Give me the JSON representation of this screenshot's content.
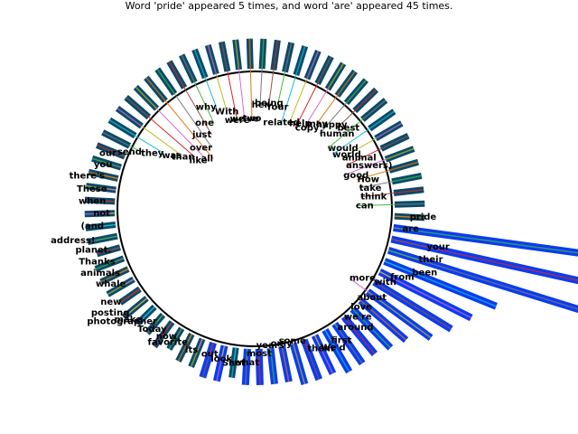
{
  "chart_data": {
    "type": "bar",
    "layout": "radial",
    "title": "Word 'pride' appeared 5 times, and word 'are' appeared 45 times.",
    "categories": [
      "pride",
      "are",
      "your",
      "their",
      "been",
      "from",
      "with",
      "more",
      "about",
      "love",
      "we're",
      "around",
      "first",
      "We'd",
      "them",
      "some",
      "only",
      "years",
      "most",
      "what",
      "Shot",
      "look",
      "out",
      "its",
      "favorite",
      "now",
      "Today",
      "photographer",
      "make",
      "posting",
      "new",
      "whale",
      "animals",
      "Thanks",
      "planet.",
      "address!",
      "(and",
      "not",
      "when",
      "These",
      "there's",
      "you",
      "our",
      "send",
      "they",
      "was",
      "than",
      "like",
      "all",
      "over",
      "just",
      "one",
      "why",
      "With",
      "were",
      "we've",
      "two",
      "her",
      "being",
      "Your",
      "related",
      "help",
      "copy",
      "may",
      "happy",
      "human",
      "best",
      "would",
      "world",
      "animal",
      "answers)",
      "good",
      "How",
      "take",
      "think",
      "can"
    ],
    "values": [
      5,
      45,
      38,
      36,
      20,
      17,
      15,
      13,
      10,
      9,
      8,
      8,
      8,
      7,
      7,
      7,
      6,
      6,
      6,
      6,
      5,
      6,
      6,
      5,
      5,
      4,
      5,
      4,
      4,
      5,
      4,
      5,
      5,
      5,
      4,
      5,
      5,
      5,
      5,
      5,
      5,
      5,
      5,
      5,
      5,
      5,
      5,
      5,
      5,
      5,
      5,
      5,
      5,
      5,
      5,
      5,
      5,
      5,
      5,
      5,
      5,
      5,
      5,
      5,
      5,
      5,
      5,
      5,
      5,
      5,
      5,
      5,
      5,
      5,
      5,
      5
    ],
    "grid": false,
    "axes": "off",
    "legend": "none"
  },
  "colors": {
    "bar_small": "#0a4a6a",
    "bar_large": "#0a3cf0",
    "circle": "#000000",
    "leaders": [
      "#e07a10",
      "#3fbf3f",
      "#d62728",
      "#7a7a7a",
      "#17becf",
      "#d66bd6",
      "#8c564b",
      "#bcbd22"
    ]
  }
}
